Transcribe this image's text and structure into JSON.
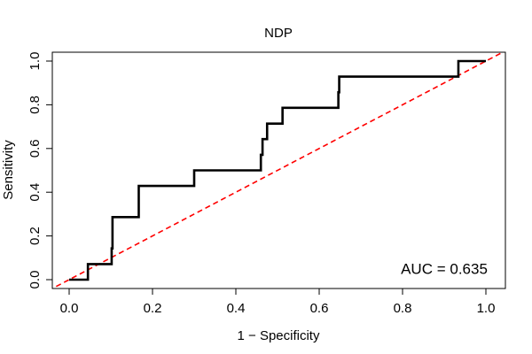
{
  "chart_data": {
    "type": "line",
    "title": "NDP",
    "xlabel": "1 − Specificity",
    "ylabel": "Sensitivity",
    "xlim": [
      0,
      1
    ],
    "ylim": [
      0,
      1
    ],
    "x_ticks": [
      0,
      0.2,
      0.4,
      0.6,
      0.8,
      1
    ],
    "x_tick_labels": [
      "0.0",
      "0.2",
      "0.4",
      "0.6",
      "0.8",
      "1.0"
    ],
    "y_ticks": [
      0,
      0.2,
      0.4,
      0.6,
      0.8,
      1
    ],
    "y_tick_labels": [
      "0.0",
      "0.2",
      "0.4",
      "0.6",
      "0.8",
      "1.0"
    ],
    "grid": false,
    "series": [
      {
        "name": "ROC curve",
        "style": "solid",
        "color": "#000000",
        "x": [
          0,
          0.045,
          0.045,
          0.102,
          0.102,
          0.104,
          0.104,
          0.167,
          0.167,
          0.3,
          0.3,
          0.46,
          0.46,
          0.464,
          0.464,
          0.475,
          0.475,
          0.512,
          0.512,
          0.646,
          0.646,
          0.648,
          0.648,
          0.934,
          0.934,
          1.0
        ],
        "y": [
          0,
          0,
          0.071,
          0.071,
          0.143,
          0.143,
          0.286,
          0.286,
          0.429,
          0.429,
          0.5,
          0.5,
          0.571,
          0.571,
          0.643,
          0.643,
          0.714,
          0.714,
          0.786,
          0.786,
          0.857,
          0.857,
          0.929,
          0.929,
          1.0,
          1.0
        ]
      },
      {
        "name": "Chance diagonal",
        "style": "dashed",
        "color": "#ff0000",
        "x": [
          -0.05,
          1.05
        ],
        "y": [
          -0.05,
          1.05
        ]
      }
    ],
    "annotations": [
      {
        "text": "AUC = 0.635",
        "x": 0.9,
        "y": 0.05
      }
    ]
  }
}
